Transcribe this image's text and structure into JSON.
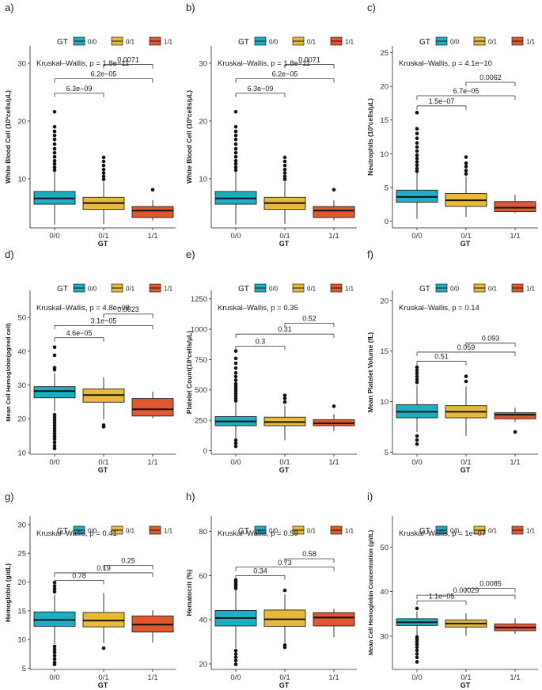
{
  "colors": {
    "g00": "#1BAFC3",
    "g01": "#E9B93A",
    "g11": "#E2582E",
    "text": "#1a1a1a"
  },
  "chart_data": [
    {
      "panel": "a)",
      "type": "boxplot",
      "ylabel": "White Blood Cell (10³cells/μL)",
      "xlabel": "GT",
      "ylim": [
        1.5,
        33
      ],
      "yticks": [
        10,
        20,
        30
      ],
      "legend": {
        "title": "GT",
        "entries": [
          "0/0",
          "0/1",
          "1/1"
        ],
        "position": "top"
      },
      "kw": "Kruskal–Wallis, p = 1.8e−11",
      "categories": [
        "0/0",
        "0/1",
        "1/1"
      ],
      "boxes": [
        {
          "whiskerLow": 2.1,
          "q1": 5.6,
          "median": 6.6,
          "q3": 7.8,
          "whiskerHigh": 11.2,
          "outliers": [
            11.5,
            12,
            12.6,
            13.1,
            13.8,
            14.5,
            15.2,
            16,
            16.8,
            17.5,
            18.2,
            19,
            21.6
          ]
        },
        {
          "whiskerLow": 2.2,
          "q1": 4.7,
          "median": 5.8,
          "q3": 6.8,
          "whiskerHigh": 9.5,
          "outliers": [
            9.9,
            10.4,
            11,
            11.6,
            12.3,
            13,
            13.7
          ]
        },
        {
          "whiskerLow": 2.8,
          "q1": 3.3,
          "median": 4.5,
          "q3": 5.2,
          "whiskerHigh": 6.3,
          "outliers": [
            8.1
          ]
        }
      ],
      "comparisons": [
        {
          "groups": [
            0,
            1
          ],
          "label": "6.3e−09",
          "y": 24.8
        },
        {
          "groups": [
            0,
            2
          ],
          "label": "6.2e−05",
          "y": 27.3
        },
        {
          "groups": [
            1,
            2
          ],
          "label": "0.0071",
          "y": 29.8
        }
      ]
    },
    {
      "panel": "b)",
      "type": "boxplot",
      "ylabel": "White Blood Cell (10³cells/μL)",
      "xlabel": "GT",
      "ylim": [
        1.5,
        33
      ],
      "yticks": [
        10,
        20,
        30
      ],
      "legend": {
        "title": "GT",
        "entries": [
          "0/0",
          "0/1",
          "1/1"
        ],
        "position": "top"
      },
      "kw": "Kruskal–Wallis, p = 1.8e−11",
      "categories": [
        "0/0",
        "0/1",
        "1/1"
      ],
      "boxes": [
        {
          "whiskerLow": 2.1,
          "q1": 5.6,
          "median": 6.6,
          "q3": 7.8,
          "whiskerHigh": 11.2,
          "outliers": [
            11.5,
            12,
            12.6,
            13.1,
            13.8,
            14.5,
            15.2,
            16,
            16.8,
            17.5,
            18.2,
            19,
            21.6
          ]
        },
        {
          "whiskerLow": 2.2,
          "q1": 4.7,
          "median": 5.8,
          "q3": 6.8,
          "whiskerHigh": 9.5,
          "outliers": [
            9.9,
            10.4,
            11,
            11.6,
            12.3,
            13,
            13.7
          ]
        },
        {
          "whiskerLow": 2.8,
          "q1": 3.3,
          "median": 4.5,
          "q3": 5.2,
          "whiskerHigh": 6.3,
          "outliers": [
            8.1
          ]
        }
      ],
      "comparisons": [
        {
          "groups": [
            0,
            1
          ],
          "label": "6.3e−09",
          "y": 24.8
        },
        {
          "groups": [
            0,
            2
          ],
          "label": "6.2e−05",
          "y": 27.3
        },
        {
          "groups": [
            1,
            2
          ],
          "label": "0.0071",
          "y": 29.8
        }
      ]
    },
    {
      "panel": "c)",
      "type": "boxplot",
      "ylabel": "Neutrophils (10³cells/μL)",
      "xlabel": "GT",
      "ylim": [
        -1,
        26
      ],
      "yticks": [
        0,
        5,
        10,
        15,
        20,
        25
      ],
      "legend": {
        "title": "GT",
        "entries": [
          "0/0",
          "0/1",
          "1/1"
        ],
        "position": "top"
      },
      "kw": "Kruskal–Wallis, p = 4.1e−10",
      "categories": [
        "0/0",
        "0/1",
        "1/1"
      ],
      "boxes": [
        {
          "whiskerLow": 0.3,
          "q1": 2.8,
          "median": 3.6,
          "q3": 4.6,
          "whiskerHigh": 7.1,
          "outliers": [
            7.4,
            7.8,
            8.3,
            8.8,
            9.3,
            9.8,
            10.4,
            11,
            11.6,
            12.3,
            13,
            13.7,
            16.1
          ]
        },
        {
          "whiskerLow": 0.6,
          "q1": 2.2,
          "median": 3.1,
          "q3": 4.1,
          "whiskerHigh": 6.6,
          "outliers": [
            7,
            7.5,
            8.1,
            8.6,
            9.5
          ]
        },
        {
          "whiskerLow": 1.2,
          "q1": 1.4,
          "median": 2.0,
          "q3": 2.9,
          "whiskerHigh": 3.9,
          "outliers": []
        }
      ],
      "comparisons": [
        {
          "groups": [
            0,
            1
          ],
          "label": "1.5e−07",
          "y": 17.1
        },
        {
          "groups": [
            0,
            2
          ],
          "label": "6.7e−05",
          "y": 18.6
        },
        {
          "groups": [
            1,
            2
          ],
          "label": "0.0062",
          "y": 20.6
        }
      ]
    },
    {
      "panel": "d)",
      "type": "boxplot",
      "ylabel": "Mean Cell Hemoglobin(pg/red cell)",
      "xlabel": "GT",
      "ylim": [
        9.5,
        58
      ],
      "yticks": [
        10,
        20,
        30,
        40,
        50
      ],
      "legend": {
        "title": "GT",
        "entries": [
          "0/0",
          "0/1",
          "1/1"
        ],
        "position": "top"
      },
      "kw": "Kruskal–Wallis, p = 4.8e−08",
      "categories": [
        "0/0",
        "0/1",
        "1/1"
      ],
      "boxes": [
        {
          "whiskerLow": 22.2,
          "q1": 26.2,
          "median": 28.2,
          "q3": 29.5,
          "whiskerHigh": 33.5,
          "outliers": [
            34.5,
            35.1,
            38.8,
            41.2,
            21.2,
            20.4,
            19.6,
            18.8,
            18,
            17.2,
            16.4,
            15.6,
            14.8,
            14,
            13,
            12,
            11.2
          ]
        },
        {
          "whiskerLow": 19.8,
          "q1": 24.9,
          "median": 27.0,
          "q3": 28.8,
          "whiskerHigh": 32.3,
          "outliers": [
            17.6,
            18.1
          ]
        },
        {
          "whiskerLow": 20.2,
          "q1": 20.8,
          "median": 22.8,
          "q3": 26.0,
          "whiskerHigh": 28.0,
          "outliers": []
        }
      ],
      "comparisons": [
        {
          "groups": [
            0,
            1
          ],
          "label": "4.6e−05",
          "y": 44.0
        },
        {
          "groups": [
            0,
            2
          ],
          "label": "3.1e−05",
          "y": 47.6
        },
        {
          "groups": [
            1,
            2
          ],
          "label": "0.0023",
          "y": 51.0
        }
      ]
    },
    {
      "panel": "e)",
      "type": "boxplot",
      "ylabel": "Platelet Count(10³cells/μL)",
      "xlabel": "GT",
      "ylim": [
        -30,
        1320
      ],
      "yticks": [
        0,
        250,
        500,
        750,
        1000,
        1250
      ],
      "legend": {
        "title": "GT",
        "entries": [
          "0/0",
          "0/1",
          "1/1"
        ],
        "position": "top"
      },
      "kw": "Kruskal–Wallis, p = 0.35",
      "categories": [
        "0/0",
        "0/1",
        "1/1"
      ],
      "boxes": [
        {
          "whiskerLow": 95,
          "q1": 205,
          "median": 240,
          "q3": 280,
          "whiskerHigh": 400,
          "outliers": [
            410,
            430,
            450,
            470,
            490,
            510,
            530,
            550,
            580,
            610,
            640,
            680,
            720,
            760,
            820,
            85,
            60,
            35
          ]
        },
        {
          "whiskerLow": 85,
          "q1": 205,
          "median": 235,
          "q3": 275,
          "whiskerHigh": 370,
          "outliers": [
            400,
            430,
            455
          ]
        },
        {
          "whiskerLow": 160,
          "q1": 205,
          "median": 225,
          "q3": 255,
          "whiskerHigh": 300,
          "outliers": [
            365
          ]
        }
      ],
      "comparisons": [
        {
          "groups": [
            0,
            1
          ],
          "label": "0.3",
          "y": 860
        },
        {
          "groups": [
            0,
            2
          ],
          "label": "0.31",
          "y": 960
        },
        {
          "groups": [
            1,
            2
          ],
          "label": "0.52",
          "y": 1050
        }
      ]
    },
    {
      "panel": "f)",
      "type": "boxplot",
      "ylabel": "Mean Platelet Volume (fL)",
      "xlabel": "GT",
      "ylim": [
        4.8,
        21
      ],
      "yticks": [
        5,
        10,
        15,
        20
      ],
      "legend": {
        "title": "GT",
        "entries": [
          "0/0",
          "0/1",
          "1/1"
        ],
        "position": "top"
      },
      "kw": "Kruskal–Wallis, p = 0.14",
      "categories": [
        "0/0",
        "0/1",
        "1/1"
      ],
      "boxes": [
        {
          "whiskerLow": 7.0,
          "q1": 8.4,
          "median": 9.0,
          "q3": 9.7,
          "whiskerHigh": 11.6,
          "outliers": [
            11.9,
            12.2,
            12.5,
            12.8,
            13.1,
            13.4,
            6.6,
            6.2,
            5.8
          ]
        },
        {
          "whiskerLow": 6.6,
          "q1": 8.4,
          "median": 9.0,
          "q3": 9.6,
          "whiskerHigh": 11.5,
          "outliers": [
            12.0,
            12.5
          ]
        },
        {
          "whiskerLow": 8.0,
          "q1": 8.3,
          "median": 8.7,
          "q3": 8.9,
          "whiskerHigh": 9.4,
          "outliers": [
            7.0
          ]
        }
      ],
      "comparisons": [
        {
          "groups": [
            0,
            1
          ],
          "label": "0.51",
          "y": 14.0
        },
        {
          "groups": [
            0,
            2
          ],
          "label": "0.059",
          "y": 14.9
        },
        {
          "groups": [
            1,
            2
          ],
          "label": "0.093",
          "y": 15.8
        }
      ]
    },
    {
      "panel": "g)",
      "type": "boxplot",
      "ylabel": "Hemoglobin (g/dL)",
      "xlabel": "GT",
      "ylim": [
        4.8,
        31.5
      ],
      "yticks": [
        5,
        10,
        15,
        20,
        25,
        30
      ],
      "legend": {
        "title": "GT",
        "entries": [
          "0/0",
          "0/1",
          "1/1"
        ],
        "position": "top"
      },
      "kw": "Kruskal–Wallis, p = 0.41",
      "categories": [
        "0/0",
        "0/1",
        "1/1"
      ],
      "boxes": [
        {
          "whiskerLow": 9.2,
          "q1": 12.3,
          "median": 13.4,
          "q3": 14.8,
          "whiskerHigh": 17.8,
          "outliers": [
            18.3,
            18.8,
            19.3,
            19.9,
            8.8,
            8.3,
            7.8,
            7.2,
            6.6,
            6.0,
            5.7
          ]
        },
        {
          "whiskerLow": 9.4,
          "q1": 12.2,
          "median": 13.3,
          "q3": 14.7,
          "whiskerHigh": 18.1,
          "outliers": [
            8.5
          ]
        },
        {
          "whiskerLow": 9.5,
          "q1": 11.3,
          "median": 12.6,
          "q3": 14.1,
          "whiskerHigh": 15.1,
          "outliers": []
        }
      ],
      "comparisons": [
        {
          "groups": [
            0,
            1
          ],
          "label": "0.78",
          "y": 20.3
        },
        {
          "groups": [
            0,
            2
          ],
          "label": "0.19",
          "y": 21.6
        },
        {
          "groups": [
            1,
            2
          ],
          "label": "0.25",
          "y": 22.9
        }
      ]
    },
    {
      "panel": "h)",
      "type": "boxplot",
      "ylabel": "Hematocrit (%)",
      "xlabel": "GT",
      "ylim": [
        17.5,
        87
      ],
      "yticks": [
        20,
        40,
        60,
        80
      ],
      "legend": {
        "title": "GT",
        "entries": [
          "0/0",
          "0/1",
          "1/1"
        ],
        "position": "top"
      },
      "kw": "Kruskal–Wallis, p = 0.59",
      "categories": [
        "0/0",
        "0/1",
        "1/1"
      ],
      "boxes": [
        {
          "whiskerLow": 27.0,
          "q1": 37.2,
          "median": 40.8,
          "q3": 44.2,
          "whiskerHigh": 53.5,
          "outliers": [
            54.2,
            55,
            55.8,
            56.6,
            57.4,
            58.0,
            26,
            24.5,
            23,
            21.5,
            19.8
          ]
        },
        {
          "whiskerLow": 29.5,
          "q1": 37.0,
          "median": 40.2,
          "q3": 44.4,
          "whiskerHigh": 51.5,
          "outliers": [
            53.3,
            28.5,
            27.5
          ]
        },
        {
          "whiskerLow": 32.0,
          "q1": 37.2,
          "median": 41.0,
          "q3": 43.2,
          "whiskerHigh": 45.0,
          "outliers": []
        }
      ],
      "comparisons": [
        {
          "groups": [
            0,
            1
          ],
          "label": "0.34",
          "y": 60.0
        },
        {
          "groups": [
            0,
            2
          ],
          "label": "0.73",
          "y": 63.8
        },
        {
          "groups": [
            1,
            2
          ],
          "label": "0.58",
          "y": 67.6
        }
      ]
    },
    {
      "panel": "i)",
      "type": "boxplot",
      "ylabel": "Mean Cell Hemoglobin Concentration (g/dL)",
      "xlabel": "GT",
      "ylim": [
        22.5,
        57
      ],
      "yticks": [
        30,
        40,
        50
      ],
      "legend": {
        "title": "GT",
        "entries": [
          "0/0",
          "0/1",
          "1/1"
        ],
        "position": "top"
      },
      "kw": "Kruskal–Wallis, p = 1e−07",
      "categories": [
        "0/0",
        "0/1",
        "1/1"
      ],
      "boxes": [
        {
          "whiskerLow": 30.2,
          "q1": 32.4,
          "median": 33.1,
          "q3": 33.9,
          "whiskerHigh": 35.6,
          "outliers": [
            36.2,
            29.8,
            29.3,
            28.8,
            28.2,
            27.5,
            26.8,
            26.0,
            25.2,
            24.2
          ]
        },
        {
          "whiskerLow": 30.0,
          "q1": 32.0,
          "median": 32.8,
          "q3": 33.6,
          "whiskerHigh": 35.1,
          "outliers": []
        },
        {
          "whiskerLow": 30.5,
          "q1": 31.2,
          "median": 31.9,
          "q3": 32.7,
          "whiskerHigh": 34.0,
          "outliers": []
        }
      ],
      "comparisons": [
        {
          "groups": [
            0,
            1
          ],
          "label": "1.1e−05",
          "y": 37.9
        },
        {
          "groups": [
            0,
            2
          ],
          "label": "0.00029",
          "y": 39.2
        },
        {
          "groups": [
            1,
            2
          ],
          "label": "0.0085",
          "y": 40.7
        }
      ]
    }
  ]
}
